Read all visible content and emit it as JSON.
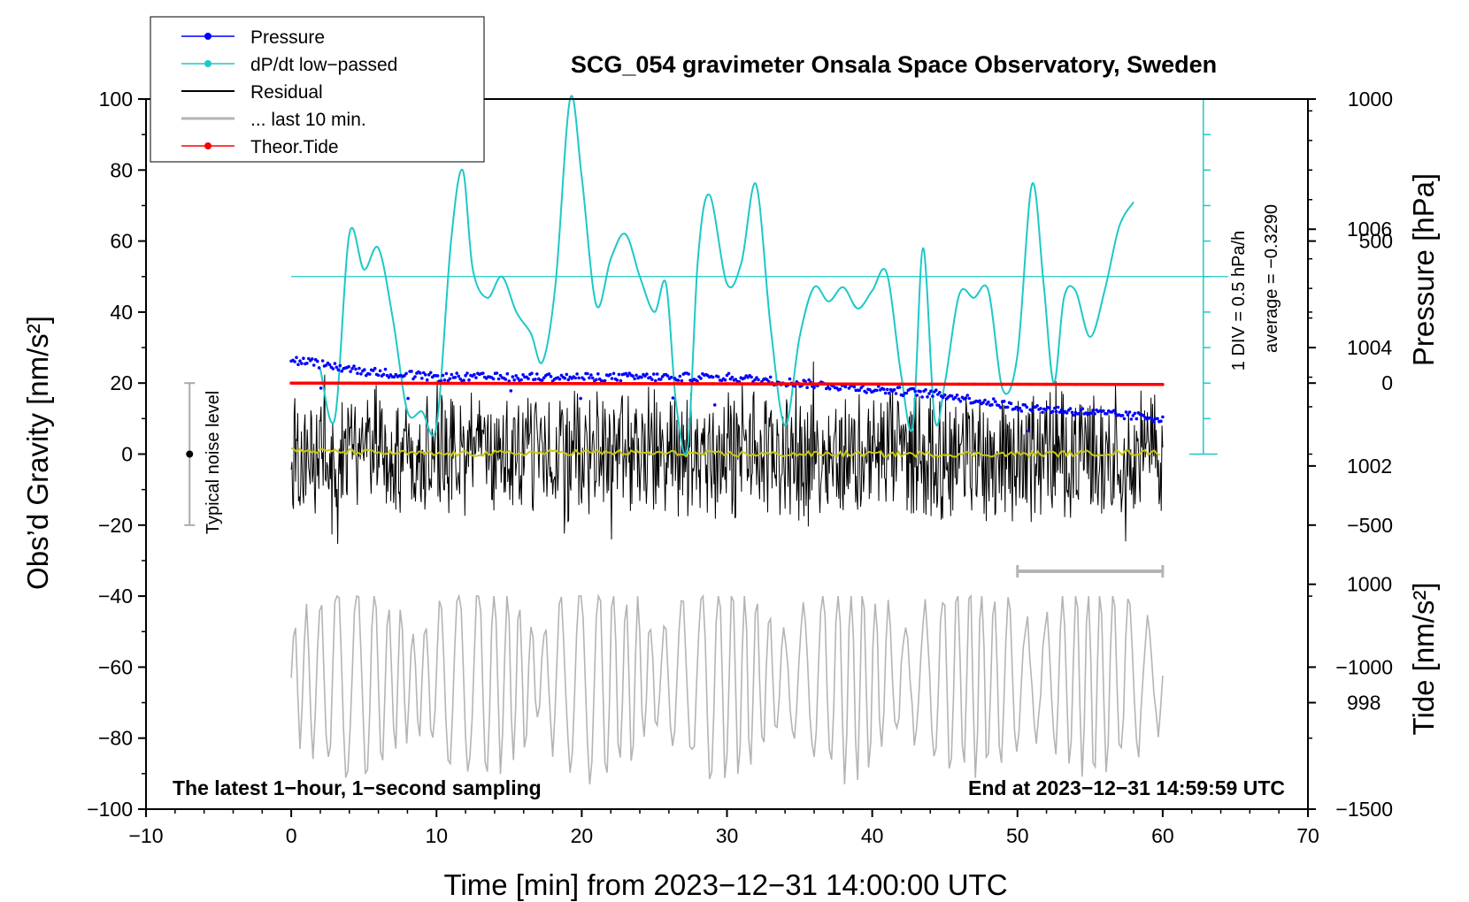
{
  "chart_data": {
    "type": "line",
    "title": "SCG_054 gravimeter Onsala Space Observatory, Sweden",
    "xlabel": "Time [min] from 2023−12−31 14:00:00 UTC",
    "ylabel_left": "Obs’d Gravity [nm/s²]",
    "ylabel_right_top": "Pressure [hPa]",
    "ylabel_right_bottom": "Tide [nm/s²]",
    "xlim": [
      -10,
      70
    ],
    "ylim": [
      -100,
      100
    ],
    "x_ticks": [
      -10,
      0,
      10,
      20,
      30,
      40,
      50,
      60,
      70
    ],
    "x_tick_labels": [
      "−10",
      "0",
      "10",
      "20",
      "30",
      "40",
      "50",
      "60",
      "70"
    ],
    "y_ticks": [
      100,
      80,
      60,
      40,
      20,
      0,
      -20,
      -40,
      -60,
      -80,
      -100
    ],
    "y_tick_labels": [
      "100",
      "80",
      "60",
      "40",
      "20",
      "0",
      "−20",
      "−40",
      "−60",
      "−80",
      "−100"
    ],
    "pressure_axis": {
      "range_hPa": [
        996.2,
        1008.2
      ],
      "ticks": [
        998,
        1000,
        1002,
        1004,
        1006
      ],
      "tick_labels": [
        "998",
        "1000",
        "1002",
        "1004",
        "1006"
      ]
    },
    "tide_axis": {
      "range": [
        -1500,
        1000
      ],
      "ticks": [
        1000,
        500,
        0,
        -500,
        -1000,
        -1500
      ],
      "tick_labels": [
        "1000",
        "500",
        "0",
        "−500",
        "−1000",
        "−1500"
      ]
    },
    "dpdt_scale": {
      "div_label": "1 DIV = 0.5 hPa/h",
      "average_label": "average = −0.3290",
      "zero_level_gravity": 50,
      "scale_x_min": 62.8,
      "scale_top": 100,
      "scale_bottom": 0,
      "divisions": 10
    },
    "noise_bar": {
      "label": "Typical noise level",
      "x": -7,
      "center": 0,
      "half_range": 20
    },
    "last10_bar": {
      "x_start": 50,
      "x_end": 60,
      "y": -33
    },
    "legend": [
      {
        "label": "Pressure",
        "color": "#0000ff",
        "marker": "dot"
      },
      {
        "label": "dP/dt low−passed",
        "color": "#1ec8c8",
        "marker": "dot"
      },
      {
        "label": "Residual",
        "color": "#000000",
        "marker": "none"
      },
      {
        "label": "... last 10 min.",
        "color": "#b4b4b4",
        "marker": "none"
      },
      {
        "label": "Theor.Tide",
        "color": "#ff0000",
        "marker": "dot"
      }
    ],
    "bottom_left_note": "The latest 1−hour, 1−second sampling",
    "bottom_right_note": "End at 2023−12−31 14:59:59 UTC",
    "series": [
      {
        "name": "Pressure",
        "axis": "pressure",
        "color": "#0000ff",
        "x": [
          0,
          5,
          10,
          15,
          20,
          25,
          30,
          35,
          40,
          45,
          50,
          55,
          60
        ],
        "values": [
          1003.8,
          1003.6,
          1003.5,
          1003.5,
          1003.5,
          1003.5,
          1003.5,
          1003.4,
          1003.3,
          1003.2,
          1003.0,
          1002.9,
          1002.8
        ]
      },
      {
        "name": "dP/dt low−passed",
        "axis": "gravity",
        "color": "#1ec8c8",
        "x": [
          2,
          3,
          4,
          5,
          6,
          7,
          8,
          9,
          10,
          11,
          11.8,
          12.5,
          13.5,
          14.5,
          15.5,
          16.5,
          17.3,
          18.2,
          19.2,
          20,
          21,
          22,
          23,
          24,
          25,
          25.8,
          26.5,
          27.3,
          28,
          28.8,
          30,
          31,
          32,
          33,
          34,
          35,
          36,
          37,
          38,
          39,
          40,
          41,
          42,
          42.8,
          43.5,
          44.3,
          45,
          46,
          47,
          48,
          49,
          50,
          51,
          51.8,
          52.5,
          53.2,
          54,
          55,
          56,
          57,
          58
        ],
        "values": [
          24,
          10,
          62,
          52,
          58,
          38,
          12,
          12,
          8,
          60,
          80,
          52,
          44,
          50,
          40,
          34,
          26,
          48,
          100,
          78,
          42,
          55,
          62,
          50,
          40,
          48,
          14,
          2,
          55,
          73,
          48,
          54,
          76,
          36,
          8,
          33,
          47,
          43,
          47,
          41,
          46,
          51,
          22,
          8,
          58,
          10,
          20,
          45,
          44,
          46,
          18,
          28,
          76,
          48,
          20,
          44,
          46,
          33,
          46,
          64,
          71
        ]
      },
      {
        "name": "Residual",
        "axis": "gravity",
        "color": "#000000",
        "x_range": [
          0,
          60
        ],
        "amplitude": 20,
        "extremes": [
          31,
          -33
        ]
      },
      {
        "name": "... last 10 min.",
        "axis": "gravity",
        "color": "#b4b4b4",
        "x_range": [
          0,
          60
        ],
        "center": -63,
        "extremes": [
          -40,
          -93
        ]
      },
      {
        "name": "Theor.Tide",
        "axis": "tide",
        "color": "#ff0000",
        "x": [
          0,
          60
        ],
        "values": [
          0,
          -5
        ]
      },
      {
        "name": "Residual smoothed",
        "axis": "gravity",
        "color": "#c8c814",
        "x": [
          0,
          10,
          20,
          30,
          40,
          50,
          60
        ],
        "values": [
          1,
          0,
          0.5,
          0,
          0,
          0,
          0.5
        ]
      }
    ]
  }
}
